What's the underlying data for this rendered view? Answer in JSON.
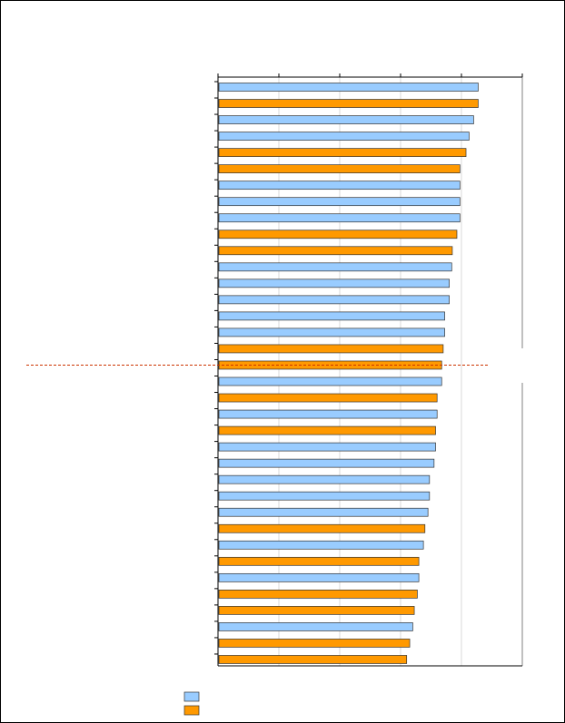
{
  "chart_data": {
    "type": "bar",
    "orientation": "horizontal",
    "title": "",
    "xlabel": "",
    "ylabel": "",
    "xlim": [
      0,
      100
    ],
    "grid": true,
    "legend_position": "bottom-left",
    "tick_labels_visible": false,
    "reference_line": {
      "position_rank": 17,
      "style": "dashed",
      "color": "#cc3300"
    },
    "series": [
      {
        "name": "",
        "color": "#99ccff"
      },
      {
        "name": "",
        "color": "#ff9900"
      }
    ],
    "bars": [
      {
        "value": 85.5,
        "series": 0
      },
      {
        "value": 85.5,
        "series": 1
      },
      {
        "value": 84.0,
        "series": 0
      },
      {
        "value": 82.5,
        "series": 0
      },
      {
        "value": 81.5,
        "series": 1
      },
      {
        "value": 79.5,
        "series": 1
      },
      {
        "value": 79.5,
        "series": 0
      },
      {
        "value": 79.5,
        "series": 0
      },
      {
        "value": 79.5,
        "series": 0
      },
      {
        "value": 78.5,
        "series": 1
      },
      {
        "value": 77.0,
        "series": 1
      },
      {
        "value": 76.8,
        "series": 0
      },
      {
        "value": 76.0,
        "series": 0
      },
      {
        "value": 76.0,
        "series": 0
      },
      {
        "value": 74.5,
        "series": 0
      },
      {
        "value": 74.5,
        "series": 0
      },
      {
        "value": 74.0,
        "series": 1
      },
      {
        "value": 73.5,
        "series": 1
      },
      {
        "value": 73.5,
        "series": 0
      },
      {
        "value": 72.0,
        "series": 1
      },
      {
        "value": 72.0,
        "series": 0
      },
      {
        "value": 71.5,
        "series": 1
      },
      {
        "value": 71.5,
        "series": 0
      },
      {
        "value": 71.0,
        "series": 0
      },
      {
        "value": 69.5,
        "series": 0
      },
      {
        "value": 69.5,
        "series": 0
      },
      {
        "value": 69.0,
        "series": 0
      },
      {
        "value": 68.0,
        "series": 1
      },
      {
        "value": 67.5,
        "series": 0
      },
      {
        "value": 66.0,
        "series": 1
      },
      {
        "value": 66.0,
        "series": 0
      },
      {
        "value": 65.5,
        "series": 1
      },
      {
        "value": 64.5,
        "series": 1
      },
      {
        "value": 64.0,
        "series": 0
      },
      {
        "value": 63.0,
        "series": 1
      },
      {
        "value": 62.0,
        "series": 1
      }
    ]
  }
}
